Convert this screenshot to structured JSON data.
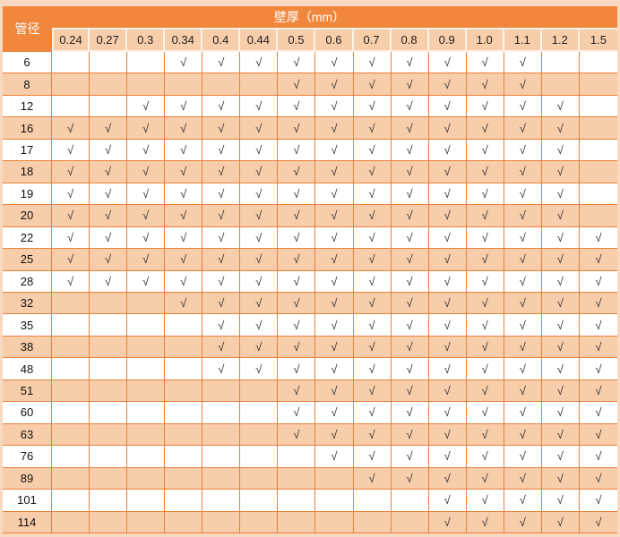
{
  "table": {
    "corner_label": "管径",
    "header_title": "壁厚（mm）",
    "check_symbol": "√",
    "thickness_columns": [
      "0.24",
      "0.27",
      "0.3",
      "0.34",
      "0.4",
      "0.44",
      "0.5",
      "0.6",
      "0.7",
      "0.8",
      "0.9",
      "1.0",
      "1.1",
      "1.2",
      "1.5"
    ],
    "rows": [
      {
        "diameter": "6",
        "checks": [
          0,
          0,
          0,
          1,
          1,
          1,
          1,
          1,
          1,
          1,
          1,
          1,
          1,
          0,
          0
        ]
      },
      {
        "diameter": "8",
        "checks": [
          0,
          0,
          0,
          0,
          0,
          0,
          1,
          1,
          1,
          1,
          1,
          1,
          1,
          0,
          0
        ]
      },
      {
        "diameter": "12",
        "checks": [
          0,
          0,
          1,
          1,
          1,
          1,
          1,
          1,
          1,
          1,
          1,
          1,
          1,
          1,
          0
        ]
      },
      {
        "diameter": "16",
        "checks": [
          1,
          1,
          1,
          1,
          1,
          1,
          1,
          1,
          1,
          1,
          1,
          1,
          1,
          1,
          0
        ]
      },
      {
        "diameter": "17",
        "checks": [
          1,
          1,
          1,
          1,
          1,
          1,
          1,
          1,
          1,
          1,
          1,
          1,
          1,
          1,
          0
        ]
      },
      {
        "diameter": "18",
        "checks": [
          1,
          1,
          1,
          1,
          1,
          1,
          1,
          1,
          1,
          1,
          1,
          1,
          1,
          1,
          0
        ]
      },
      {
        "diameter": "19",
        "checks": [
          1,
          1,
          1,
          1,
          1,
          1,
          1,
          1,
          1,
          1,
          1,
          1,
          1,
          1,
          0
        ]
      },
      {
        "diameter": "20",
        "checks": [
          1,
          1,
          1,
          1,
          1,
          1,
          1,
          1,
          1,
          1,
          1,
          1,
          1,
          1,
          0
        ]
      },
      {
        "diameter": "22",
        "checks": [
          1,
          1,
          1,
          1,
          1,
          1,
          1,
          1,
          1,
          1,
          1,
          1,
          1,
          1,
          1
        ]
      },
      {
        "diameter": "25",
        "checks": [
          1,
          1,
          1,
          1,
          1,
          1,
          1,
          1,
          1,
          1,
          1,
          1,
          1,
          1,
          1
        ]
      },
      {
        "diameter": "28",
        "checks": [
          1,
          1,
          1,
          1,
          1,
          1,
          1,
          1,
          1,
          1,
          1,
          1,
          1,
          1,
          1
        ]
      },
      {
        "diameter": "32",
        "checks": [
          0,
          0,
          0,
          1,
          1,
          1,
          1,
          1,
          1,
          1,
          1,
          1,
          1,
          1,
          1
        ]
      },
      {
        "diameter": "35",
        "checks": [
          0,
          0,
          0,
          0,
          1,
          1,
          1,
          1,
          1,
          1,
          1,
          1,
          1,
          1,
          1
        ]
      },
      {
        "diameter": "38",
        "checks": [
          0,
          0,
          0,
          0,
          1,
          1,
          1,
          1,
          1,
          1,
          1,
          1,
          1,
          1,
          1
        ]
      },
      {
        "diameter": "48",
        "checks": [
          0,
          0,
          0,
          0,
          1,
          1,
          1,
          1,
          1,
          1,
          1,
          1,
          1,
          1,
          1
        ]
      },
      {
        "diameter": "51",
        "checks": [
          0,
          0,
          0,
          0,
          0,
          0,
          1,
          1,
          1,
          1,
          1,
          1,
          1,
          1,
          1
        ]
      },
      {
        "diameter": "60",
        "checks": [
          0,
          0,
          0,
          0,
          0,
          0,
          1,
          1,
          1,
          1,
          1,
          1,
          1,
          1,
          1
        ]
      },
      {
        "diameter": "63",
        "checks": [
          0,
          0,
          0,
          0,
          0,
          0,
          1,
          1,
          1,
          1,
          1,
          1,
          1,
          1,
          1
        ]
      },
      {
        "diameter": "76",
        "checks": [
          0,
          0,
          0,
          0,
          0,
          0,
          0,
          1,
          1,
          1,
          1,
          1,
          1,
          1,
          1
        ]
      },
      {
        "diameter": "89",
        "checks": [
          0,
          0,
          0,
          0,
          0,
          0,
          0,
          0,
          1,
          1,
          1,
          1,
          1,
          1,
          1
        ]
      },
      {
        "diameter": "101",
        "checks": [
          0,
          0,
          0,
          0,
          0,
          0,
          0,
          0,
          0,
          0,
          1,
          1,
          1,
          1,
          1
        ]
      },
      {
        "diameter": "114",
        "checks": [
          0,
          0,
          0,
          0,
          0,
          0,
          0,
          0,
          0,
          0,
          1,
          1,
          1,
          1,
          1
        ]
      }
    ],
    "colors": {
      "header_orange": "#f0873c",
      "light_orange_row": "#f8cda9",
      "white_row": "#ffffff",
      "grid_border": "#e9813b",
      "outer_frame": "#f9d9bf",
      "header_separator": "#fdf2e7",
      "check_color": "#303030"
    }
  }
}
